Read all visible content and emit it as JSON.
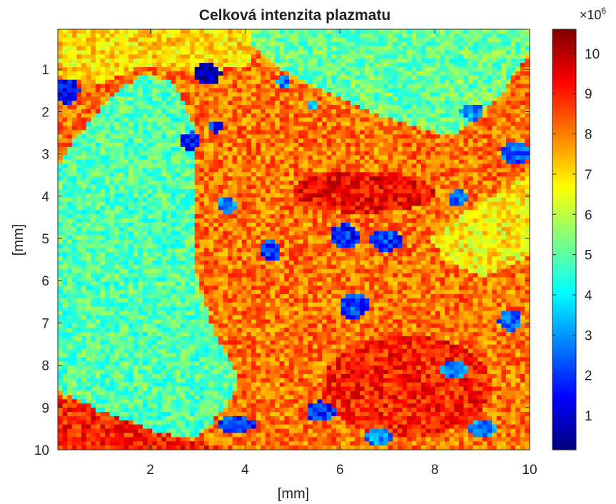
{
  "chart_data": {
    "type": "heatmap",
    "title": "Celková intenzita plazmatu",
    "xlabel": "[mm]",
    "ylabel": "[mm]",
    "xlim": [
      0.05,
      10
    ],
    "ylim": [
      10,
      0.05
    ],
    "x_ticks": [
      2,
      4,
      6,
      8,
      10
    ],
    "y_ticks": [
      1,
      2,
      3,
      4,
      5,
      6,
      7,
      8,
      9,
      10
    ],
    "colormap": "jet",
    "colorbar": {
      "range": [
        0.15,
        10.6
      ],
      "ticks": [
        1,
        2,
        3,
        4,
        5,
        6,
        7,
        8,
        9,
        10
      ],
      "multiplier": "×10",
      "exponent": "6"
    },
    "grid": false,
    "regions": [
      {
        "name": "left-cyan",
        "shape": "poly",
        "points": [
          [
            0.3,
            2.8
          ],
          [
            1.2,
            1.6
          ],
          [
            1.9,
            1.1
          ],
          [
            2.5,
            1.3
          ],
          [
            2.9,
            2.3
          ],
          [
            2.95,
            3.6
          ],
          [
            2.95,
            5.8
          ],
          [
            3.4,
            7.4
          ],
          [
            3.9,
            8.3
          ],
          [
            3.6,
            9.0
          ],
          [
            3.0,
            9.7
          ],
          [
            2.2,
            9.9
          ],
          [
            1.5,
            9.4
          ],
          [
            0.6,
            8.9
          ],
          [
            0.05,
            8.6
          ],
          [
            0.05,
            3.3
          ]
        ],
        "value": 4.9
      },
      {
        "name": "top-right-cyan",
        "shape": "poly",
        "points": [
          [
            4.1,
            0.05
          ],
          [
            10.0,
            0.05
          ],
          [
            10.0,
            0.6
          ],
          [
            9.4,
            1.6
          ],
          [
            8.4,
            2.6
          ],
          [
            7.1,
            2.2
          ],
          [
            5.6,
            1.5
          ],
          [
            4.6,
            0.9
          ],
          [
            4.2,
            0.5
          ]
        ],
        "value": 5.1
      },
      {
        "name": "top-left-band",
        "shape": "poly",
        "points": [
          [
            0.05,
            0.05
          ],
          [
            4.1,
            0.05
          ],
          [
            4.1,
            0.9
          ],
          [
            3.0,
            1.1
          ],
          [
            1.9,
            0.9
          ],
          [
            0.8,
            1.4
          ],
          [
            0.05,
            1.1
          ]
        ],
        "value": 7.0
      },
      {
        "name": "right-mid-yellow",
        "shape": "poly",
        "points": [
          [
            10.0,
            3.5
          ],
          [
            10.0,
            5.4
          ],
          [
            9.0,
            5.9
          ],
          [
            8.3,
            5.6
          ],
          [
            7.9,
            5.0
          ],
          [
            8.6,
            4.4
          ],
          [
            9.4,
            3.9
          ]
        ],
        "value": 6.8
      },
      {
        "name": "center-hot",
        "shape": "ellipse",
        "cx": 6.5,
        "cy": 3.9,
        "rx": 1.5,
        "ry": 0.5,
        "value": 9.3
      },
      {
        "name": "bottom-left-hot",
        "shape": "poly",
        "points": [
          [
            0.05,
            8.7
          ],
          [
            1.0,
            9.1
          ],
          [
            2.2,
            9.6
          ],
          [
            3.0,
            9.8
          ],
          [
            3.6,
            10.0
          ],
          [
            0.05,
            10.0
          ]
        ],
        "value": 9.0
      },
      {
        "name": "lower-right-hot",
        "shape": "ellipse",
        "cx": 7.4,
        "cy": 8.5,
        "rx": 1.8,
        "ry": 1.2,
        "value": 9.0
      },
      {
        "name": "blob-1",
        "shape": "ellipse",
        "cx": 3.2,
        "cy": 1.1,
        "rx": 0.3,
        "ry": 0.25,
        "value": 0.6
      },
      {
        "name": "blob-2",
        "shape": "ellipse",
        "cx": 0.25,
        "cy": 1.5,
        "rx": 0.25,
        "ry": 0.3,
        "value": 1.4
      },
      {
        "name": "blob-3",
        "shape": "ellipse",
        "cx": 2.85,
        "cy": 2.7,
        "rx": 0.2,
        "ry": 0.22,
        "value": 1.5
      },
      {
        "name": "blob-4",
        "shape": "ellipse",
        "cx": 6.1,
        "cy": 4.95,
        "rx": 0.3,
        "ry": 0.3,
        "value": 1.8
      },
      {
        "name": "blob-5",
        "shape": "ellipse",
        "cx": 7.0,
        "cy": 5.05,
        "rx": 0.35,
        "ry": 0.25,
        "value": 2.0
      },
      {
        "name": "blob-6",
        "shape": "ellipse",
        "cx": 6.3,
        "cy": 6.6,
        "rx": 0.3,
        "ry": 0.3,
        "value": 2.2
      },
      {
        "name": "blob-7",
        "shape": "ellipse",
        "cx": 4.55,
        "cy": 5.3,
        "rx": 0.2,
        "ry": 0.25,
        "value": 2.1
      },
      {
        "name": "blob-8",
        "shape": "ellipse",
        "cx": 3.6,
        "cy": 4.2,
        "rx": 0.2,
        "ry": 0.2,
        "value": 2.6
      },
      {
        "name": "blob-9",
        "shape": "ellipse",
        "cx": 9.7,
        "cy": 3.0,
        "rx": 0.3,
        "ry": 0.25,
        "value": 2.3
      },
      {
        "name": "blob-10",
        "shape": "ellipse",
        "cx": 8.4,
        "cy": 8.1,
        "rx": 0.3,
        "ry": 0.2,
        "value": 2.8
      },
      {
        "name": "blob-11",
        "shape": "ellipse",
        "cx": 3.8,
        "cy": 9.4,
        "rx": 0.4,
        "ry": 0.2,
        "value": 2.0
      },
      {
        "name": "blob-12",
        "shape": "ellipse",
        "cx": 5.6,
        "cy": 9.1,
        "rx": 0.3,
        "ry": 0.25,
        "value": 2.0
      },
      {
        "name": "blob-13",
        "shape": "ellipse",
        "cx": 8.5,
        "cy": 4.05,
        "rx": 0.2,
        "ry": 0.2,
        "value": 2.4
      },
      {
        "name": "blob-14",
        "shape": "ellipse",
        "cx": 9.6,
        "cy": 6.95,
        "rx": 0.25,
        "ry": 0.25,
        "value": 2.6
      },
      {
        "name": "blob-15",
        "shape": "ellipse",
        "cx": 8.8,
        "cy": 2.0,
        "rx": 0.25,
        "ry": 0.2,
        "value": 2.9
      },
      {
        "name": "blob-16",
        "shape": "ellipse",
        "cx": 4.8,
        "cy": 1.3,
        "rx": 0.15,
        "ry": 0.15,
        "value": 2.7
      },
      {
        "name": "blob-17",
        "shape": "ellipse",
        "cx": 9.0,
        "cy": 9.5,
        "rx": 0.3,
        "ry": 0.2,
        "value": 2.9
      },
      {
        "name": "blob-18",
        "shape": "ellipse",
        "cx": 6.8,
        "cy": 9.7,
        "rx": 0.3,
        "ry": 0.2,
        "value": 2.8
      },
      {
        "name": "blob-19",
        "shape": "ellipse",
        "cx": 3.35,
        "cy": 2.35,
        "rx": 0.15,
        "ry": 0.15,
        "value": 1.8
      },
      {
        "name": "blob-20",
        "shape": "ellipse",
        "cx": 5.4,
        "cy": 1.85,
        "rx": 0.12,
        "ry": 0.12,
        "value": 3.2
      }
    ]
  }
}
